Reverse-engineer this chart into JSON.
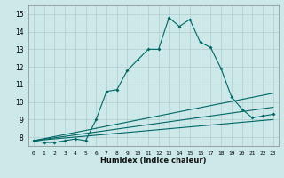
{
  "xlabel": "Humidex (Indice chaleur)",
  "bg_color": "#cce8e8",
  "grid_color": "#b0cccc",
  "line_color": "#006666",
  "xlim": [
    -0.5,
    23.5
  ],
  "ylim": [
    7.5,
    15.5
  ],
  "yticks": [
    8,
    9,
    10,
    11,
    12,
    13,
    14,
    15
  ],
  "xticks": [
    0,
    1,
    2,
    3,
    4,
    5,
    6,
    7,
    8,
    9,
    10,
    11,
    12,
    13,
    14,
    15,
    16,
    17,
    18,
    19,
    20,
    21,
    22,
    23
  ],
  "line1_x": [
    0,
    1,
    2,
    3,
    4,
    5,
    6,
    7,
    8,
    9,
    10,
    11,
    12,
    13,
    14,
    15,
    16,
    17,
    18,
    19,
    20,
    21,
    22,
    23
  ],
  "line1_y": [
    7.8,
    7.7,
    7.7,
    7.8,
    7.9,
    7.8,
    9.0,
    10.6,
    10.7,
    11.8,
    12.4,
    13.0,
    13.0,
    14.8,
    14.3,
    14.7,
    13.4,
    13.1,
    11.9,
    10.3,
    9.6,
    9.1,
    9.2,
    9.3
  ],
  "line2_x": [
    0,
    23
  ],
  "line2_y": [
    7.8,
    9.0
  ],
  "line3_x": [
    0,
    23
  ],
  "line3_y": [
    7.8,
    9.7
  ],
  "line4_x": [
    0,
    23
  ],
  "line4_y": [
    7.8,
    10.5
  ]
}
